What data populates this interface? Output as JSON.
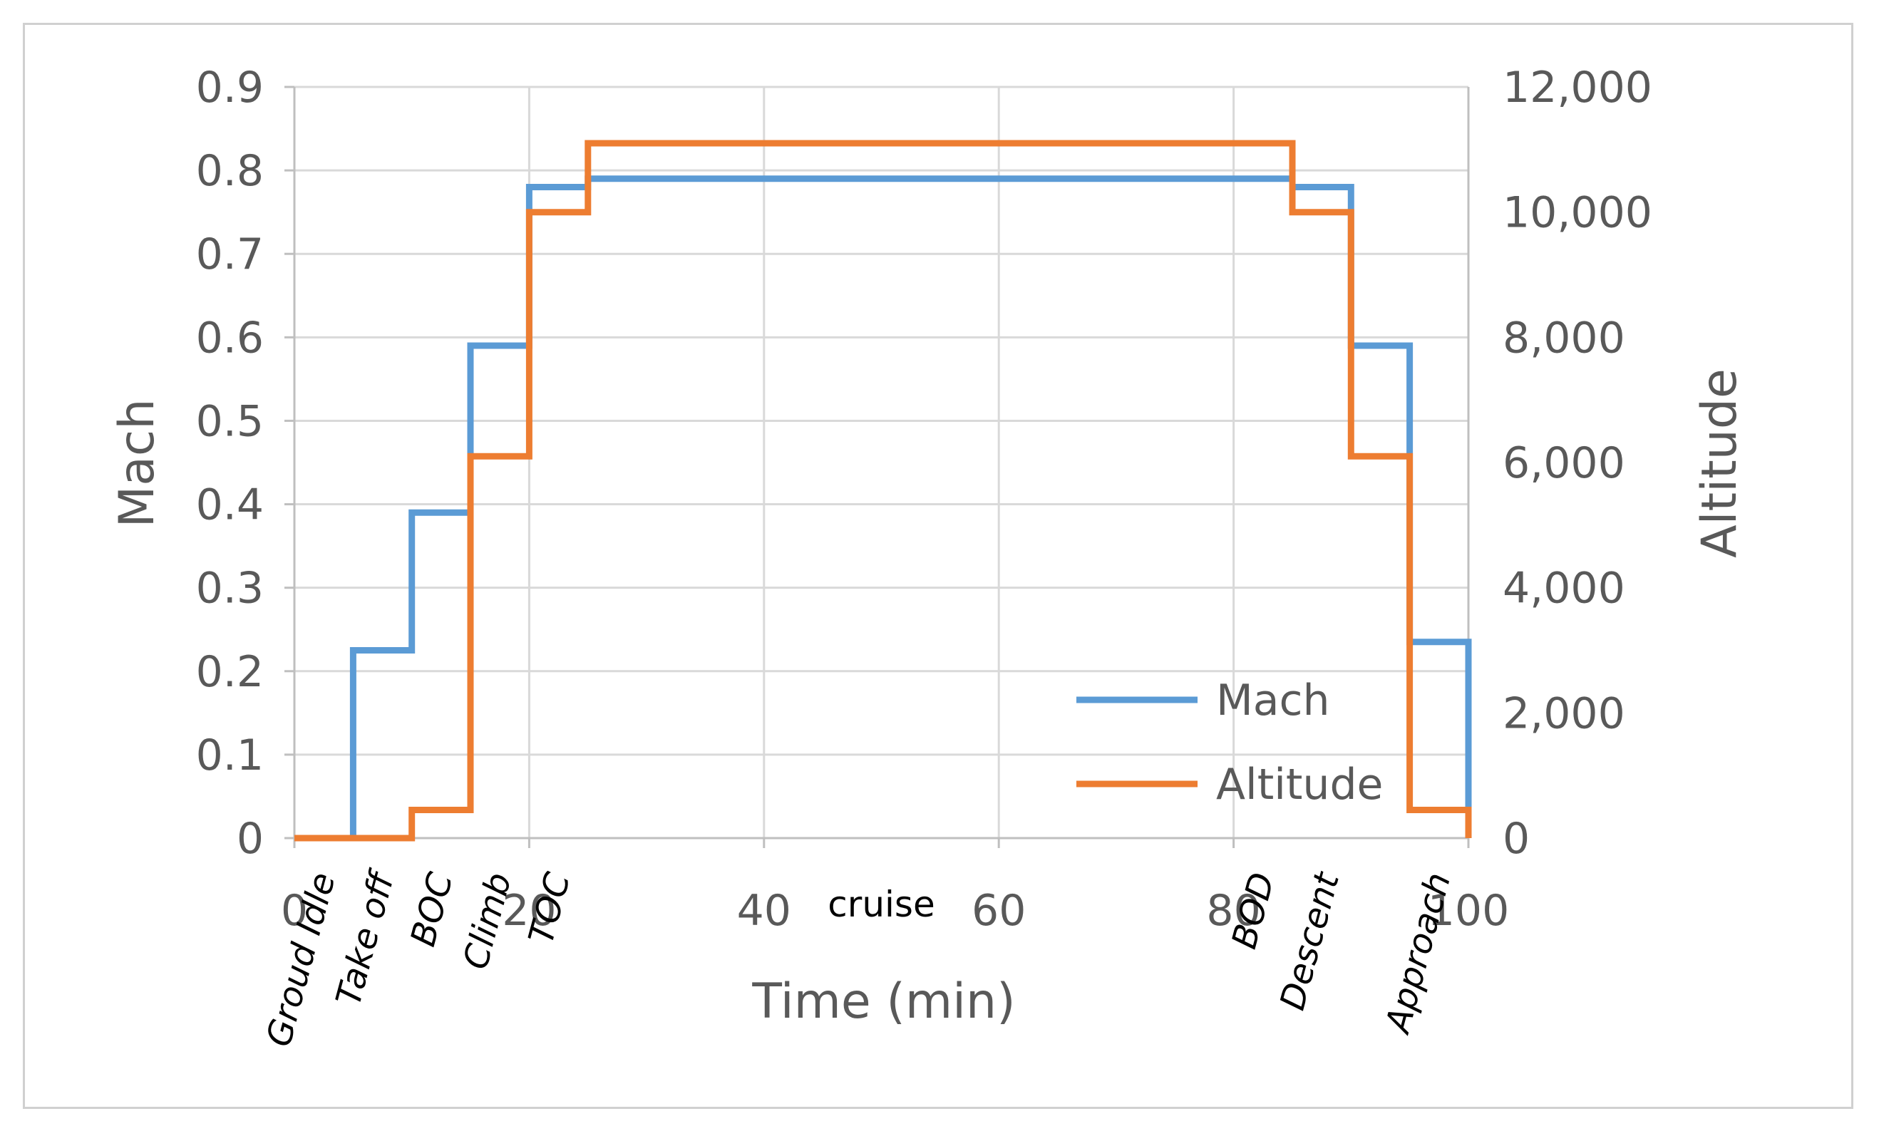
{
  "chart_data": {
    "type": "line",
    "step": true,
    "title": "",
    "xlabel": "Time (min)",
    "ylabel": "Mach",
    "y2label": "Altitude",
    "xlim": [
      0,
      100
    ],
    "ylim": [
      0,
      0.9
    ],
    "y2lim": [
      0,
      12000
    ],
    "x_ticks": [
      "0",
      "20",
      "40",
      "60",
      "80",
      "100"
    ],
    "y_ticks": [
      "0",
      "0.1",
      "0.2",
      "0.3",
      "0.4",
      "0.5",
      "0.6",
      "0.7",
      "0.8",
      "0.9"
    ],
    "y2_ticks": [
      "0",
      "2,000",
      "4,000",
      "6,000",
      "8,000",
      "10,000",
      "12,000"
    ],
    "grid": true,
    "legend_position": "bottom-right",
    "colors": {
      "Mach": "#5b9bd5",
      "Altitude": "#ed7d31"
    },
    "series": [
      {
        "name": "Mach",
        "axis": "left",
        "x": [
          0,
          5,
          5,
          10,
          10,
          15,
          15,
          20,
          20,
          25,
          25,
          85,
          85,
          90,
          90,
          95,
          95,
          100,
          100
        ],
        "y": [
          0,
          0,
          0.225,
          0.225,
          0.39,
          0.39,
          0.59,
          0.59,
          0.78,
          0.78,
          0.79,
          0.79,
          0.78,
          0.78,
          0.59,
          0.59,
          0.235,
          0.235,
          0.03
        ]
      },
      {
        "name": "Altitude",
        "axis": "right",
        "x": [
          0,
          10,
          10,
          15,
          15,
          20,
          20,
          25,
          25,
          85,
          85,
          90,
          90,
          95,
          95,
          100,
          100
        ],
        "y": [
          0,
          0,
          450,
          450,
          6100,
          6100,
          10000,
          10000,
          11100,
          11100,
          10000,
          10000,
          6100,
          6100,
          450,
          450,
          0
        ]
      }
    ],
    "phases_rotated": [
      {
        "label": "Groud Idle",
        "x": 2.5
      },
      {
        "label": "Take off",
        "x": 7.5
      },
      {
        "label": "BOC",
        "x": 12.5
      },
      {
        "label": "Climb",
        "x": 17.5
      },
      {
        "label": "TOC",
        "x": 22.5
      },
      {
        "label": "BOD",
        "x": 82.5
      },
      {
        "label": "Descent",
        "x": 88
      },
      {
        "label": "Approach",
        "x": 97.5
      }
    ],
    "phase_cruise": {
      "label": "cruise",
      "x": 50
    }
  }
}
